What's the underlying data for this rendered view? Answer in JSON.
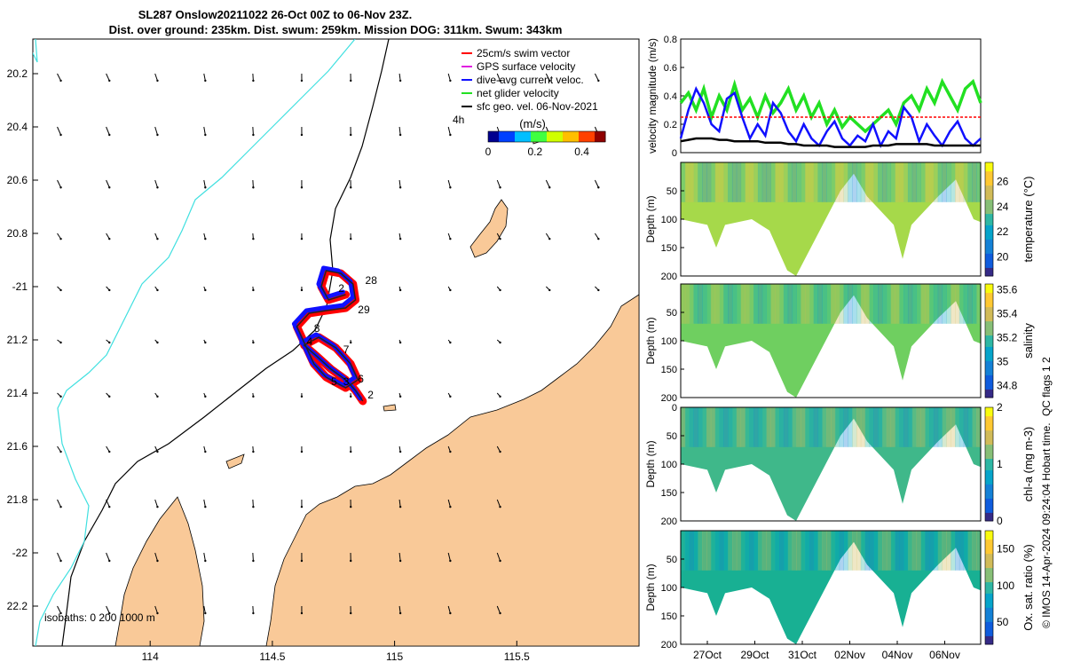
{
  "title": {
    "line1": "SL287 Onslow20211022 26-Oct 00Z to 06-Nov 23Z.",
    "line2": "Dist. over ground: 235km. Dist. swum: 259km. Mission DOG: 311km. Swum: 343km"
  },
  "colors": {
    "land": "#f9c998",
    "coast_line": "#000000",
    "isobath_shallow": "#40e0e0",
    "track_red": "#ff0000",
    "track_blue": "#1010ff",
    "net_green": "#22e022",
    "magenta": "#e020e0"
  },
  "chart_data": [
    {
      "type": "map",
      "id": "track-map",
      "xlim": [
        113.52,
        116.0
      ],
      "ylim": [
        -22.35,
        -20.07
      ],
      "x_ticks": [
        {
          "value": 114,
          "label": "114"
        },
        {
          "value": 114.5,
          "label": "114.5"
        },
        {
          "value": 115,
          "label": "115"
        },
        {
          "value": 115.5,
          "label": "115.5"
        }
      ],
      "y_ticks": [
        {
          "value": -20.2,
          "label": "20.2"
        },
        {
          "value": -20.4,
          "label": "20.4"
        },
        {
          "value": -20.6,
          "label": "20.6"
        },
        {
          "value": -20.8,
          "label": "20.8"
        },
        {
          "value": -21,
          "label": "-21"
        },
        {
          "value": -21.2,
          "label": "21.2"
        },
        {
          "value": -21.4,
          "label": "21.4"
        },
        {
          "value": -21.6,
          "label": "21.6"
        },
        {
          "value": -21.8,
          "label": "21.8"
        },
        {
          "value": -22,
          "label": "-22"
        },
        {
          "value": -22.2,
          "label": "22.2"
        }
      ],
      "legend": [
        {
          "label": "25cm/s swim vector",
          "color": "#ff0000"
        },
        {
          "label": "GPS surface velocity",
          "color": "#e020e0"
        },
        {
          "label": "dive-avg current veloc.",
          "color": "#1010ff"
        },
        {
          "label": "net glider velocity",
          "color": "#22e022"
        },
        {
          "label": "sfc geo. vel. 06-Nov-2021",
          "color": "#000000"
        }
      ],
      "legend_note": "4h",
      "colorbar": {
        "label": "(m/s)",
        "ticks": [
          "0",
          "0.2",
          "0.4"
        ],
        "range": [
          0,
          0.5
        ]
      },
      "isobaths_label": "isobaths: 0   200  1000 m",
      "day_labels": [
        {
          "text": "28",
          "lon": 114.88,
          "lat": -20.99
        },
        {
          "text": "2",
          "lon": 114.77,
          "lat": -21.02
        },
        {
          "text": "29",
          "lon": 114.85,
          "lat": -21.1
        },
        {
          "text": "8",
          "lon": 114.67,
          "lat": -21.17
        },
        {
          "text": "4",
          "lon": 114.64,
          "lat": -21.22
        },
        {
          "text": "7",
          "lon": 114.79,
          "lat": -21.25
        },
        {
          "text": "5",
          "lon": 114.74,
          "lat": -21.37
        },
        {
          "text": "3",
          "lon": 114.79,
          "lat": -21.37
        },
        {
          "text": "6",
          "lon": 114.85,
          "lat": -21.36
        },
        {
          "text": "2",
          "lon": 114.89,
          "lat": -21.42
        }
      ],
      "track": [
        [
          114.87,
          -21.43
        ],
        [
          114.84,
          -21.39
        ],
        [
          114.8,
          -21.35
        ],
        [
          114.74,
          -21.31
        ],
        [
          114.68,
          -21.26
        ],
        [
          114.63,
          -21.22
        ],
        [
          114.69,
          -21.19
        ],
        [
          114.76,
          -21.23
        ],
        [
          114.82,
          -21.29
        ],
        [
          114.85,
          -21.35
        ],
        [
          114.8,
          -21.38
        ],
        [
          114.72,
          -21.34
        ],
        [
          114.67,
          -21.29
        ],
        [
          114.6,
          -21.15
        ],
        [
          114.65,
          -21.1
        ],
        [
          114.72,
          -21.09
        ],
        [
          114.8,
          -21.08
        ],
        [
          114.84,
          -21.05
        ],
        [
          114.83,
          -20.99
        ],
        [
          114.78,
          -20.95
        ],
        [
          114.72,
          -20.94
        ],
        [
          114.7,
          -21.0
        ],
        [
          114.73,
          -21.05
        ],
        [
          114.8,
          -21.03
        ]
      ]
    },
    {
      "type": "line",
      "id": "velocity-panel",
      "ylabel": "velocity magnitude (m/s)",
      "ylim": [
        0,
        0.8
      ],
      "y_ticks": [
        "0",
        "0.2",
        "0.4",
        "0.6",
        "0.8"
      ],
      "xlim": [
        0,
        12
      ],
      "series": [
        {
          "name": "net glider velocity",
          "color": "#22e022",
          "values": [
            0.35,
            0.42,
            0.3,
            0.45,
            0.25,
            0.4,
            0.3,
            0.48,
            0.3,
            0.38,
            0.25,
            0.4,
            0.28,
            0.35,
            0.45,
            0.3,
            0.4,
            0.25,
            0.35,
            0.2,
            0.3,
            0.18,
            0.25,
            0.2,
            0.15,
            0.2,
            0.25,
            0.3,
            0.2,
            0.35,
            0.4,
            0.3,
            0.45,
            0.35,
            0.5,
            0.4,
            0.3,
            0.45,
            0.5,
            0.35
          ]
        },
        {
          "name": "dive-avg current veloc.",
          "color": "#1010ff",
          "values": [
            0.1,
            0.3,
            0.45,
            0.35,
            0.2,
            0.15,
            0.38,
            0.42,
            0.25,
            0.1,
            0.2,
            0.12,
            0.35,
            0.28,
            0.15,
            0.08,
            0.2,
            0.1,
            0.05,
            0.15,
            0.22,
            0.1,
            0.05,
            0.12,
            0.08,
            0.2,
            0.05,
            0.15,
            0.1,
            0.32,
            0.25,
            0.08,
            0.2,
            0.12,
            0.05,
            0.15,
            0.22,
            0.1,
            0.05,
            0.1
          ]
        },
        {
          "name": "swim",
          "color": "#ff0000",
          "values": [
            0.25,
            0.25,
            0.25,
            0.25,
            0.25,
            0.25,
            0.25,
            0.25,
            0.25,
            0.25,
            0.25,
            0.25,
            0.25,
            0.25,
            0.25,
            0.25,
            0.25,
            0.25,
            0.25,
            0.25,
            0.25,
            0.25,
            0.25,
            0.25,
            0.25,
            0.25,
            0.25,
            0.25,
            0.25,
            0.25,
            0.25,
            0.25,
            0.25,
            0.25,
            0.25,
            0.25,
            0.25,
            0.25,
            0.25,
            0.25
          ]
        },
        {
          "name": "sfc geo",
          "color": "#000000",
          "values": [
            0.08,
            0.09,
            0.1,
            0.1,
            0.1,
            0.09,
            0.09,
            0.08,
            0.08,
            0.08,
            0.08,
            0.07,
            0.07,
            0.07,
            0.06,
            0.06,
            0.05,
            0.05,
            0.05,
            0.05,
            0.04,
            0.04,
            0.04,
            0.04,
            0.04,
            0.05,
            0.05,
            0.05,
            0.06,
            0.06,
            0.06,
            0.06,
            0.06,
            0.05,
            0.05,
            0.05,
            0.05,
            0.05,
            0.05,
            0.05
          ]
        }
      ]
    },
    {
      "type": "heatmap",
      "id": "temperature-panel",
      "ylabel": "Depth (m)",
      "cbar_label": "temperature (°C)",
      "cbar_ticks": [
        "20",
        "22",
        "24",
        "26"
      ],
      "cbar_range": [
        18.5,
        27.5
      ],
      "palette": "parula",
      "fill_color": "#a6d94a",
      "y_ticks": [
        "50",
        "100",
        "150",
        "200"
      ]
    },
    {
      "type": "heatmap",
      "id": "salinity-panel",
      "ylabel": "Depth (m)",
      "cbar_label": "salinity",
      "cbar_ticks": [
        "34.8",
        "35",
        "35.2",
        "35.4",
        "35.6"
      ],
      "cbar_range": [
        34.7,
        35.65
      ],
      "palette": "parula",
      "fill_color": "#6fcf60",
      "y_ticks": [
        "50",
        "100",
        "150",
        "200"
      ]
    },
    {
      "type": "heatmap",
      "id": "chla-panel",
      "ylabel": "Depth (m)",
      "cbar_label": "chl-a (mg m-3)",
      "cbar_ticks": [
        "0",
        "1",
        "2"
      ],
      "cbar_range": [
        0,
        2
      ],
      "palette": "parula",
      "fill_color": "#3fb88a",
      "y_ticks": [
        "0",
        "50",
        "100",
        "150",
        "200"
      ]
    },
    {
      "type": "heatmap",
      "id": "oxygen-panel",
      "ylabel": "Depth (m)",
      "cbar_label": "Ox. sat. ratio (%)",
      "cbar_ticks": [
        "50",
        "100",
        "150"
      ],
      "cbar_range": [
        20,
        175
      ],
      "palette": "parula",
      "fill_color": "#18b093",
      "y_ticks": [
        "50",
        "100",
        "150",
        "200"
      ]
    }
  ],
  "time_axis": {
    "ticks": [
      "27Oct",
      "29Oct",
      "31Oct",
      "02Nov",
      "04Nov",
      "06Nov"
    ]
  },
  "footer": {
    "flags": "QC flags 1  2",
    "credit": "© IMOS 14-Apr-2024 09:24:04 Hobart time."
  }
}
